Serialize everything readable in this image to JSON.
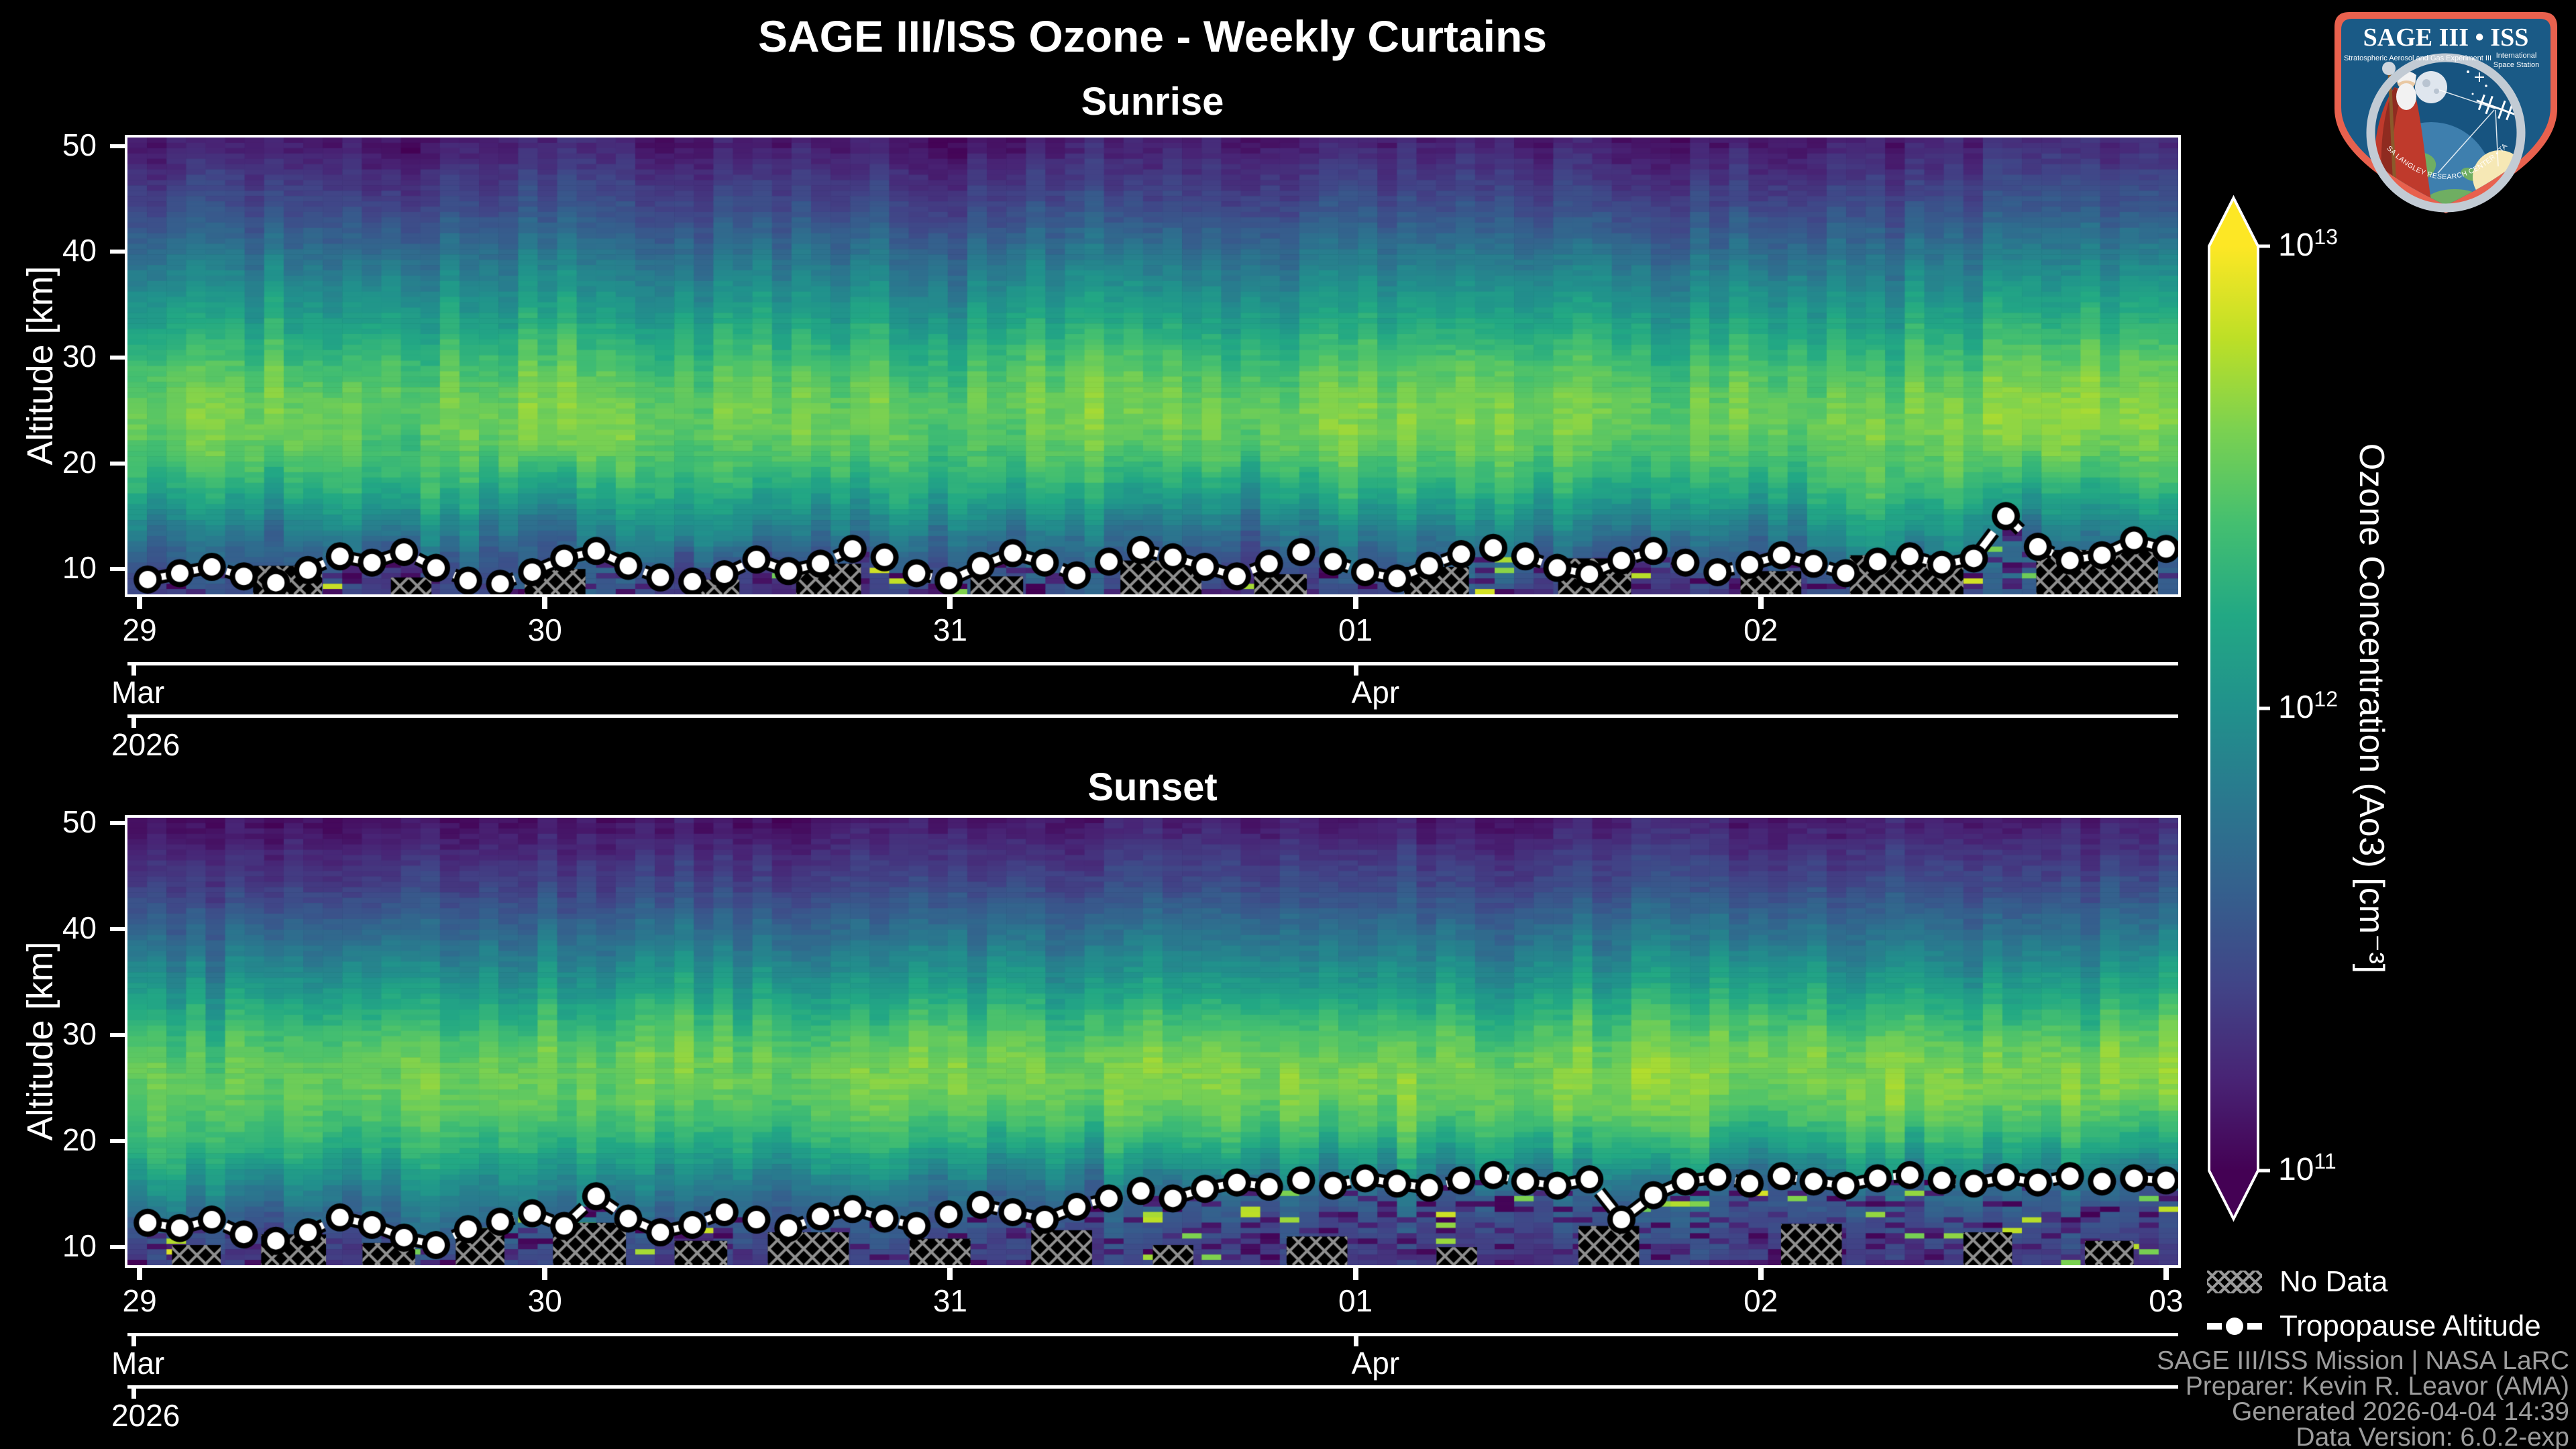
{
  "figure": {
    "title": "SAGE III/ISS Ozone - Weekly Curtains",
    "background": "#000000"
  },
  "logo": {
    "title": "SAGE III • ISS",
    "subtitle_left": "Stratospheric Aerosol and Gas Experiment III",
    "subtitle_right_1": "International",
    "subtitle_right_2": "Space Station",
    "ring_text": "BALL • NASA LANGLEY RESEARCH CENTER • TAS-I • ESA",
    "border_color": "#e8614e",
    "field_color": "#1a5a86",
    "ring_color": "#c2cbd4"
  },
  "axes": {
    "ylabel": "Altitude [km]",
    "yticks": [
      50,
      40,
      30,
      20,
      10
    ],
    "month_left_label": "Mar",
    "month_right_label": "Apr",
    "year_label": "2026"
  },
  "colorbar": {
    "label": "Ozone Concentration (Ao3) [cm⁻³]",
    "colormap": "viridis",
    "scale": "log",
    "vmin": "1e11",
    "vmax": "1e13",
    "ticks": [
      {
        "base": "10",
        "exp": "13"
      },
      {
        "base": "10",
        "exp": "12"
      },
      {
        "base": "10",
        "exp": "11"
      }
    ]
  },
  "legend": {
    "no_data": "No Data",
    "tropopause": "Tropopause Altitude"
  },
  "attribution": {
    "lines": [
      "SAGE III/ISS Mission | NASA LaRC",
      "Preparer: Kevin R. Leavor (AMA)",
      "Generated 2026-04-04 14:39",
      "Data Version: 6.0.2-exp"
    ]
  },
  "chart_data": [
    {
      "type": "heatmap",
      "title": "Sunrise",
      "x_unit": "days since 2026-03-29",
      "x_range": [
        -0.03,
        5.03
      ],
      "y_range": [
        7.6,
        50.8
      ],
      "x_ticks": [
        {
          "day": 0,
          "label": "29"
        },
        {
          "day": 1,
          "label": "30"
        },
        {
          "day": 2,
          "label": "31"
        },
        {
          "day": 3,
          "label": "01"
        },
        {
          "day": 4,
          "label": "02"
        }
      ],
      "month_tick_day": 3,
      "grid": {
        "days": [
          0,
          0.33,
          0.67,
          1,
          1.33,
          1.67,
          2,
          2.33,
          2.67,
          3,
          3.33,
          3.67,
          4,
          4.33,
          4.67,
          5
        ],
        "altitudes_km": [
          8,
          10,
          12,
          14,
          16,
          18,
          21,
          24,
          27,
          30,
          34,
          38,
          44,
          50
        ],
        "log10_values": [
          [
            11.4,
            11.5,
            11.3,
            11.6,
            11.4,
            11.2,
            11.5,
            11.6,
            11.3,
            11.4,
            11.6,
            11.2,
            11.5,
            11.4,
            11.6,
            11.5
          ],
          [
            11.5,
            11.6,
            11.4,
            11.7,
            11.5,
            11.3,
            11.6,
            11.7,
            11.4,
            11.5,
            11.7,
            11.3,
            11.6,
            11.5,
            11.7,
            11.6
          ],
          [
            11.7,
            11.6,
            11.8,
            11.5,
            11.9,
            11.6,
            11.7,
            11.8,
            11.5,
            11.7,
            11.8,
            11.6,
            11.7,
            11.9,
            11.6,
            11.8
          ],
          [
            11.9,
            11.8,
            12.0,
            11.7,
            12.1,
            11.8,
            11.9,
            12.0,
            11.7,
            11.9,
            12.0,
            11.8,
            11.9,
            12.1,
            11.8,
            12.0
          ],
          [
            12.1,
            12.0,
            12.2,
            11.9,
            12.2,
            12.0,
            12.1,
            12.2,
            11.9,
            12.1,
            12.2,
            12.0,
            12.1,
            12.2,
            12.0,
            12.2
          ],
          [
            12.3,
            12.2,
            12.4,
            12.1,
            12.4,
            12.2,
            12.3,
            12.4,
            12.1,
            12.3,
            12.4,
            12.2,
            12.3,
            12.4,
            12.2,
            12.4
          ],
          [
            12.45,
            12.5,
            12.4,
            12.55,
            12.45,
            12.5,
            12.4,
            12.55,
            12.45,
            12.5,
            12.55,
            12.4,
            12.5,
            12.45,
            12.55,
            12.5
          ],
          [
            12.55,
            12.6,
            12.5,
            12.65,
            12.55,
            12.6,
            12.5,
            12.65,
            12.55,
            12.6,
            12.65,
            12.5,
            12.6,
            12.55,
            12.65,
            12.6
          ],
          [
            12.5,
            12.55,
            12.45,
            12.6,
            12.5,
            12.55,
            12.45,
            12.6,
            12.5,
            12.55,
            12.6,
            12.45,
            12.55,
            12.5,
            12.6,
            12.55
          ],
          [
            12.35,
            12.4,
            12.3,
            12.45,
            12.35,
            12.4,
            12.3,
            12.45,
            12.35,
            12.4,
            12.45,
            12.3,
            12.4,
            12.35,
            12.45,
            12.4
          ],
          [
            12.1,
            12.15,
            12.05,
            12.2,
            12.1,
            12.15,
            12.05,
            12.2,
            12.1,
            12.15,
            12.2,
            12.05,
            12.15,
            12.1,
            12.2,
            12.15
          ],
          [
            11.85,
            11.9,
            11.8,
            11.95,
            11.85,
            11.9,
            11.8,
            11.95,
            11.85,
            11.9,
            11.95,
            11.8,
            11.9,
            11.85,
            11.95,
            11.9
          ],
          [
            11.45,
            11.5,
            11.4,
            11.55,
            11.45,
            11.5,
            11.4,
            11.55,
            11.45,
            11.5,
            11.55,
            11.4,
            11.5,
            11.45,
            11.55,
            11.5
          ],
          [
            11.15,
            11.2,
            11.1,
            11.25,
            11.15,
            11.2,
            11.1,
            11.25,
            11.15,
            11.2,
            11.25,
            11.1,
            11.2,
            11.15,
            11.25,
            11.2
          ]
        ]
      },
      "tropopause": {
        "day_start": 0.02,
        "day_end": 5.0,
        "alt_km": [
          9.0,
          9.6,
          10.2,
          9.3,
          8.7,
          9.9,
          11.2,
          10.6,
          11.6,
          10.1,
          8.9,
          8.6,
          9.7,
          11.0,
          11.7,
          10.3,
          9.2,
          8.8,
          9.5,
          10.9,
          9.8,
          10.5,
          11.9,
          11.1,
          9.6,
          8.9,
          10.3,
          11.5,
          10.6,
          9.4,
          10.7,
          11.8,
          11.1,
          10.2,
          9.3,
          10.5,
          11.6,
          10.7,
          9.7,
          9.1,
          10.3,
          11.4,
          12.0,
          11.2,
          10.1,
          9.5,
          10.8,
          11.7,
          10.6,
          9.7,
          10.4,
          11.3,
          10.5,
          9.6,
          10.7,
          11.2,
          10.4,
          11.0,
          15.0,
          12.1,
          10.8,
          11.3,
          12.7,
          11.9
        ]
      },
      "no_data_patches": [
        [
          0.28,
          0.45,
          7.6,
          10.3
        ],
        [
          0.62,
          0.72,
          7.6,
          9.2
        ],
        [
          0.95,
          1.1,
          7.6,
          10.0
        ],
        [
          1.35,
          1.48,
          7.6,
          9.0
        ],
        [
          1.62,
          1.78,
          7.6,
          10.5
        ],
        [
          2.05,
          2.18,
          7.6,
          9.3
        ],
        [
          2.42,
          2.62,
          7.6,
          10.8
        ],
        [
          2.75,
          2.88,
          7.6,
          9.5
        ],
        [
          3.12,
          3.28,
          7.6,
          10.2
        ],
        [
          3.5,
          3.68,
          7.6,
          11.0
        ],
        [
          3.95,
          4.1,
          7.6,
          9.8
        ],
        [
          4.22,
          4.5,
          7.6,
          11.3
        ],
        [
          4.68,
          4.98,
          7.6,
          11.8
        ]
      ]
    },
    {
      "type": "heatmap",
      "title": "Sunset",
      "x_unit": "days since 2026-03-29",
      "x_range": [
        -0.03,
        5.03
      ],
      "y_range": [
        8.3,
        50.5
      ],
      "x_ticks": [
        {
          "day": 0,
          "label": "29"
        },
        {
          "day": 1,
          "label": "30"
        },
        {
          "day": 2,
          "label": "31"
        },
        {
          "day": 3,
          "label": "01"
        },
        {
          "day": 4,
          "label": "02"
        },
        {
          "day": 5,
          "label": "03"
        }
      ],
      "month_tick_day": 3,
      "grid": {
        "days": [
          0,
          0.33,
          0.67,
          1,
          1.33,
          1.67,
          2,
          2.33,
          2.67,
          3,
          3.33,
          3.67,
          4,
          4.33,
          4.67,
          5
        ],
        "altitudes_km": [
          8,
          10,
          12,
          14,
          16,
          18,
          21,
          24,
          27,
          30,
          34,
          38,
          44,
          50
        ],
        "log10_values": [
          [
            11.4,
            11.3,
            11.5,
            11.35,
            11.4,
            11.3,
            11.45,
            11.35,
            11.3,
            11.4,
            11.3,
            11.35,
            11.4,
            11.3,
            11.35,
            11.3
          ],
          [
            11.5,
            11.4,
            11.6,
            11.45,
            11.5,
            11.4,
            11.5,
            11.4,
            11.35,
            11.45,
            11.35,
            11.4,
            11.45,
            11.35,
            11.4,
            11.35
          ],
          [
            11.7,
            11.55,
            11.75,
            11.6,
            11.65,
            11.55,
            11.6,
            11.5,
            11.45,
            11.5,
            11.45,
            11.5,
            11.5,
            11.45,
            11.5,
            11.45
          ],
          [
            11.9,
            11.75,
            11.9,
            11.75,
            11.8,
            11.65,
            11.7,
            11.6,
            11.55,
            11.6,
            11.55,
            11.6,
            11.6,
            11.55,
            11.6,
            11.55
          ],
          [
            12.1,
            11.95,
            12.05,
            11.9,
            11.95,
            11.8,
            11.85,
            11.75,
            11.7,
            11.75,
            11.7,
            11.75,
            11.7,
            11.75,
            11.7,
            11.7
          ],
          [
            12.3,
            12.2,
            12.25,
            12.1,
            12.15,
            12.05,
            12.1,
            12.0,
            12.0,
            12.05,
            12.0,
            12.05,
            12.0,
            12.05,
            12.0,
            12.0
          ],
          [
            12.45,
            12.4,
            12.45,
            12.35,
            12.4,
            12.35,
            12.4,
            12.35,
            12.35,
            12.4,
            12.35,
            12.4,
            12.35,
            12.4,
            12.35,
            12.35
          ],
          [
            12.55,
            12.5,
            12.6,
            12.5,
            12.55,
            12.5,
            12.6,
            12.55,
            12.55,
            12.6,
            12.55,
            12.6,
            12.55,
            12.6,
            12.55,
            12.6
          ],
          [
            12.55,
            12.5,
            12.6,
            12.55,
            12.6,
            12.55,
            12.65,
            12.6,
            12.6,
            12.65,
            12.6,
            12.65,
            12.6,
            12.65,
            12.6,
            12.65
          ],
          [
            12.4,
            12.35,
            12.45,
            12.4,
            12.45,
            12.4,
            12.5,
            12.45,
            12.45,
            12.5,
            12.45,
            12.5,
            12.45,
            12.5,
            12.45,
            12.5
          ],
          [
            12.1,
            12.05,
            12.15,
            12.1,
            12.15,
            12.1,
            12.2,
            12.15,
            12.15,
            12.2,
            12.15,
            12.2,
            12.15,
            12.2,
            12.15,
            12.2
          ],
          [
            11.8,
            11.75,
            11.85,
            11.8,
            11.85,
            11.8,
            11.9,
            11.85,
            11.85,
            11.9,
            11.85,
            11.9,
            11.85,
            11.9,
            11.85,
            11.9
          ],
          [
            11.4,
            11.35,
            11.45,
            11.4,
            11.45,
            11.4,
            11.5,
            11.45,
            11.45,
            11.5,
            11.45,
            11.5,
            11.45,
            11.5,
            11.45,
            11.5
          ],
          [
            11.1,
            11.1,
            11.15,
            11.1,
            11.15,
            11.1,
            11.2,
            11.15,
            11.15,
            11.2,
            11.15,
            11.2,
            11.15,
            11.2,
            11.15,
            11.2
          ]
        ]
      },
      "tropopause": {
        "day_start": 0.02,
        "day_end": 5.0,
        "alt_km": [
          12.3,
          11.8,
          12.6,
          11.2,
          10.6,
          11.4,
          12.8,
          12.1,
          10.9,
          10.2,
          11.7,
          12.4,
          13.2,
          12.0,
          14.8,
          12.7,
          11.4,
          12.1,
          13.3,
          12.6,
          11.8,
          12.9,
          13.6,
          12.7,
          12.0,
          13.1,
          14.0,
          13.3,
          12.6,
          13.8,
          14.6,
          15.3,
          14.6,
          15.5,
          16.1,
          15.7,
          16.3,
          15.8,
          16.5,
          16.0,
          15.6,
          16.3,
          16.8,
          16.2,
          15.8,
          16.4,
          12.6,
          14.9,
          16.2,
          16.6,
          16.0,
          16.7,
          16.2,
          15.8,
          16.5,
          16.8,
          16.3,
          16.0,
          16.6,
          16.1,
          16.7,
          16.2,
          16.5,
          16.3
        ]
      },
      "no_data_patches": [
        [
          0.08,
          0.2,
          8.3,
          10.2
        ],
        [
          0.3,
          0.46,
          8.3,
          11.2
        ],
        [
          0.55,
          0.68,
          8.3,
          10.4
        ],
        [
          0.78,
          0.9,
          8.3,
          11.8
        ],
        [
          1.02,
          1.2,
          8.3,
          12.3
        ],
        [
          1.32,
          1.45,
          8.3,
          10.6
        ],
        [
          1.55,
          1.75,
          8.3,
          11.4
        ],
        [
          1.9,
          2.05,
          8.3,
          10.8
        ],
        [
          2.2,
          2.35,
          8.3,
          11.6
        ],
        [
          2.5,
          2.6,
          8.3,
          10.2
        ],
        [
          2.83,
          2.98,
          8.3,
          11.0
        ],
        [
          3.2,
          3.3,
          8.3,
          10.0
        ],
        [
          3.55,
          3.7,
          8.3,
          12.0
        ],
        [
          4.05,
          4.2,
          8.3,
          12.2
        ],
        [
          4.5,
          4.62,
          8.3,
          11.4
        ],
        [
          4.8,
          4.92,
          8.3,
          10.6
        ]
      ]
    }
  ]
}
